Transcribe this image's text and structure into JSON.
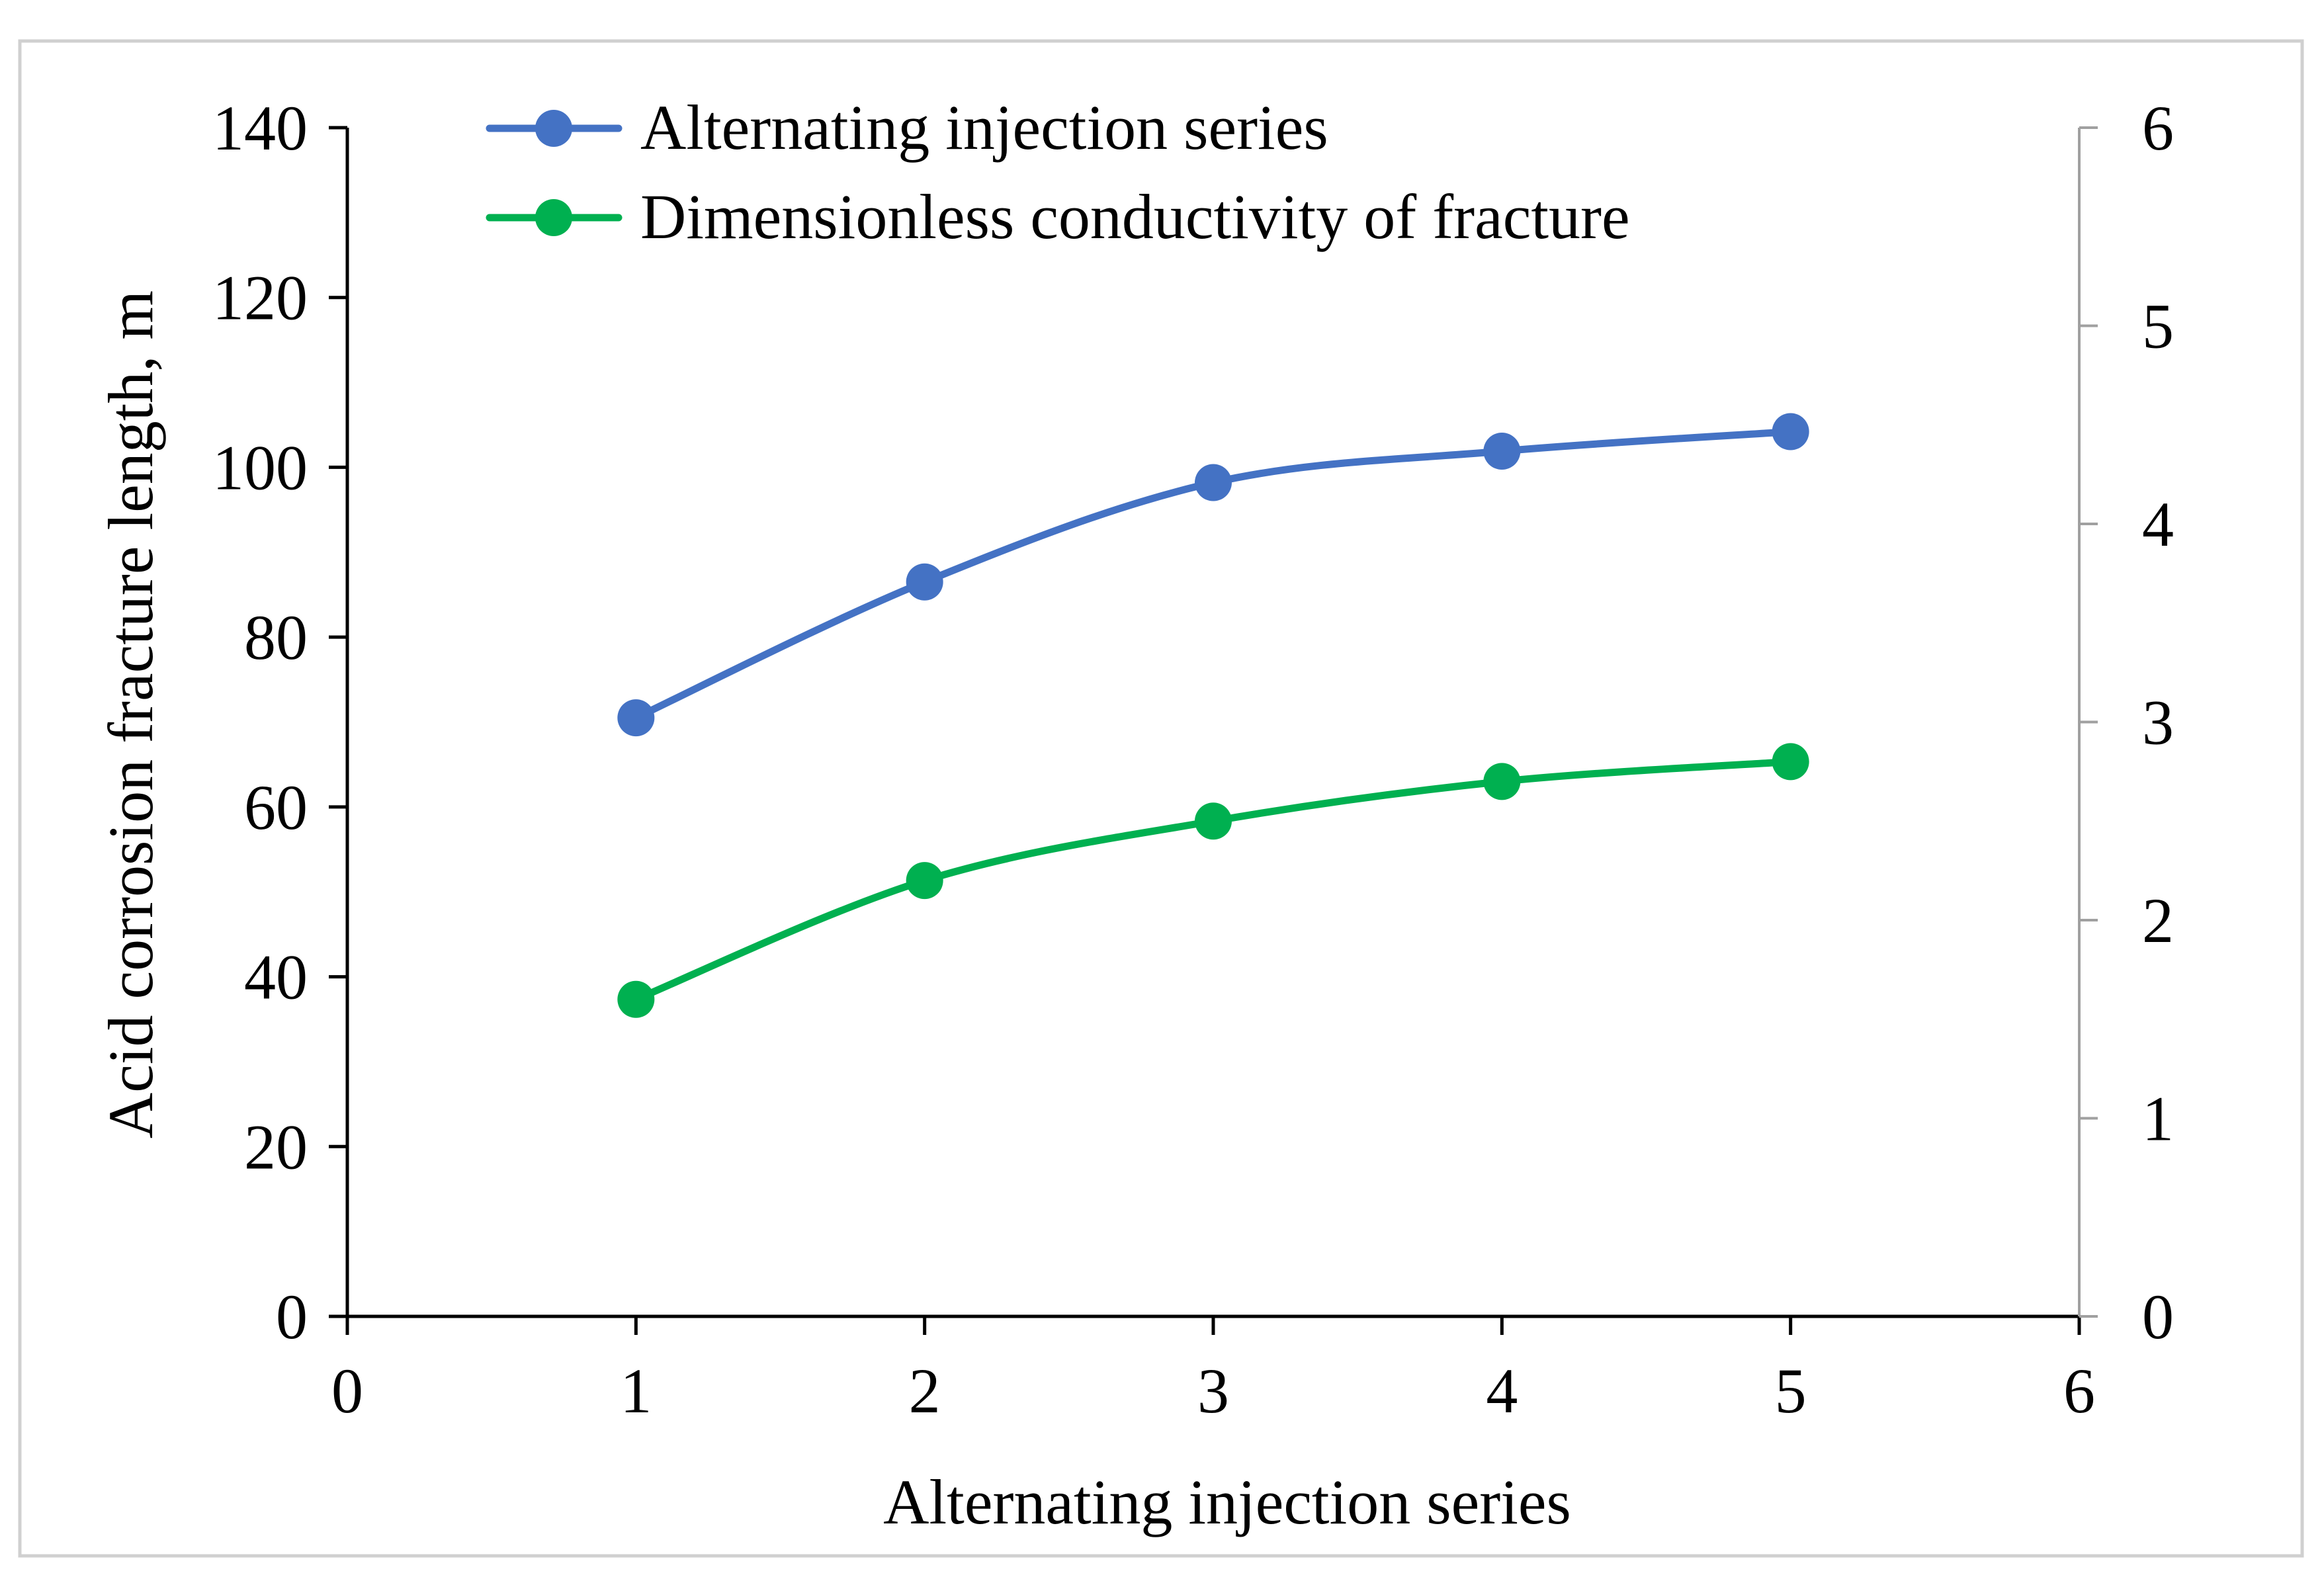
{
  "chart_data": {
    "type": "line",
    "title": "",
    "xlabel": "Alternating injection series",
    "ylabel": "Acid corrosion fracture length, m",
    "y2label": "",
    "xlim": [
      0,
      6
    ],
    "ylim": [
      0,
      140
    ],
    "y2lim": [
      0,
      6
    ],
    "x_ticks": [
      "0",
      "1",
      "2",
      "3",
      "4",
      "5",
      "6"
    ],
    "y_ticks": [
      "0",
      "20",
      "40",
      "60",
      "80",
      "100",
      "120",
      "140"
    ],
    "y2_ticks": [
      "0",
      "1",
      "2",
      "3",
      "4",
      "5",
      "6"
    ],
    "x": [
      1,
      2,
      3,
      4,
      5
    ],
    "series": [
      {
        "name": "Alternating injection series",
        "axis": "left",
        "color": "#4472C4",
        "values": [
          70.5,
          86.5,
          98.2,
          101.9,
          104.2
        ]
      },
      {
        "name": "Dimensionless conductivity of fracture",
        "axis": "right",
        "color": "#00B050",
        "values": [
          1.6,
          2.2,
          2.5,
          2.7,
          2.8
        ]
      }
    ],
    "legend_position": "top-left",
    "grid": false
  }
}
